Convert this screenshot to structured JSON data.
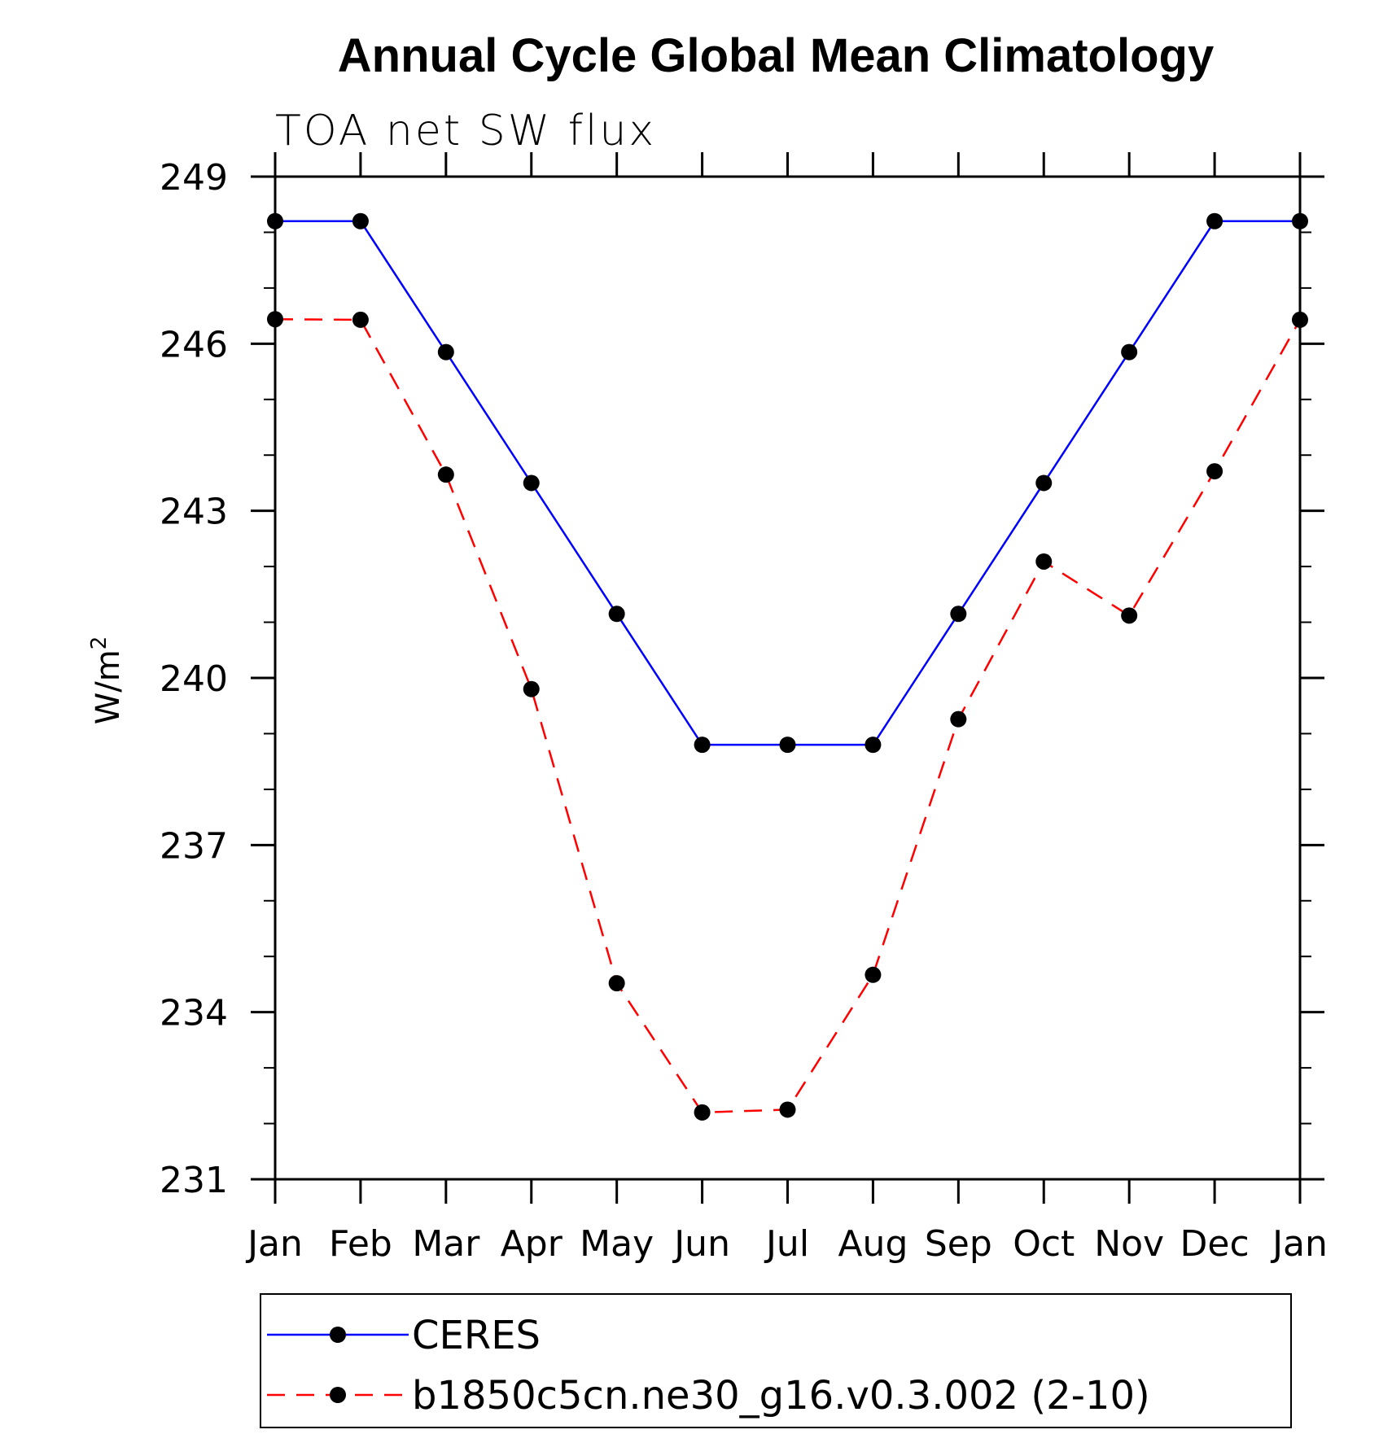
{
  "chart_data": {
    "type": "line",
    "title": "Annual Cycle Global Mean Climatology",
    "subtitle": "TOA net SW flux",
    "xlabel": "",
    "ylabel": "W/m",
    "ylabel_superscript": "2",
    "categories": [
      "Jan",
      "Feb",
      "Mar",
      "Apr",
      "May",
      "Jun",
      "Jul",
      "Aug",
      "Sep",
      "Oct",
      "Nov",
      "Dec",
      "Jan"
    ],
    "ylim": [
      231,
      249
    ],
    "yticks": [
      231,
      234,
      237,
      240,
      243,
      246,
      249
    ],
    "y_minor_step": 1,
    "grid": false,
    "legend_position": "bottom",
    "series": [
      {
        "name": "CERES",
        "color": "#0000ff",
        "line_style": "solid",
        "marker": "filled-circle",
        "marker_color": "#000000",
        "values": [
          248.2,
          248.2,
          245.85,
          243.5,
          241.15,
          238.8,
          238.8,
          238.8,
          241.15,
          243.5,
          245.85,
          248.2,
          248.2
        ]
      },
      {
        "name": "b1850c5cn.ne30_g16.v0.3.002 (2-10)",
        "color": "#ff0000",
        "line_style": "dashed",
        "marker": "filled-circle",
        "marker_color": "#000000",
        "values": [
          246.44,
          246.43,
          243.65,
          239.8,
          234.52,
          232.2,
          232.25,
          234.67,
          239.26,
          242.09,
          241.12,
          243.71,
          246.43
        ]
      }
    ]
  }
}
